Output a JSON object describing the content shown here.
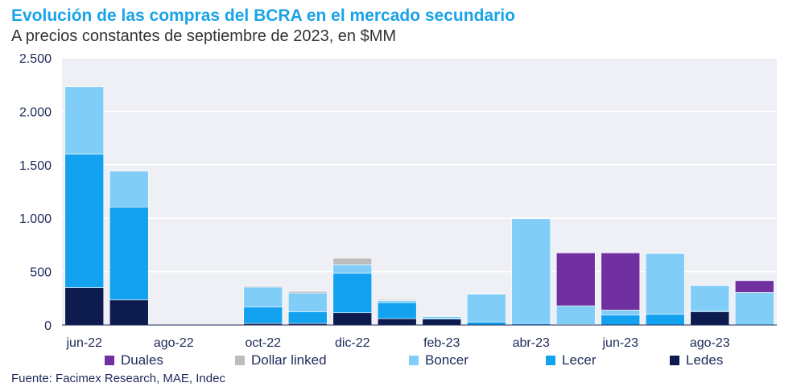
{
  "title": "Evolución de las compras del BCRA en el mercado secundario",
  "subtitle": "A precios constantes de septiembre de 2023, en $MM",
  "source": "Fuente: Facimex Research, MAE, Indec",
  "chart_data": {
    "type": "bar",
    "stacked": true,
    "categories": [
      "jun-22",
      "jul-22",
      "ago-22",
      "sep-22",
      "oct-22",
      "nov-22",
      "dic-22",
      "ene-23",
      "feb-23",
      "mar-23",
      "abr-23",
      "may-23",
      "jun-23",
      "jul-23",
      "ago-23",
      "sep-23"
    ],
    "x_tick_labels": [
      "jun-22",
      "ago-22",
      "oct-22",
      "dic-22",
      "feb-23",
      "abr-23",
      "jun-23",
      "ago-23"
    ],
    "y_tick_labels": [
      "0",
      "500",
      "1.000",
      "1.500",
      "2.000",
      "2.500"
    ],
    "y_ticks": [
      0,
      500,
      1000,
      1500,
      2000,
      2500
    ],
    "ylim": [
      0,
      2500
    ],
    "grid": true,
    "legend_position": "bottom",
    "series": [
      {
        "name": "Ledes",
        "color": "#0d1b4f",
        "values": [
          350,
          235,
          0,
          0,
          15,
          15,
          115,
          60,
          55,
          0,
          0,
          0,
          0,
          0,
          125,
          0
        ]
      },
      {
        "name": "Lecer",
        "color": "#12a2ef",
        "values": [
          1250,
          870,
          0,
          0,
          155,
          110,
          370,
          150,
          10,
          30,
          15,
          5,
          95,
          100,
          10,
          0
        ]
      },
      {
        "name": "Boncer",
        "color": "#80cdf8",
        "values": [
          630,
          335,
          0,
          0,
          185,
          175,
          80,
          20,
          15,
          260,
          980,
          175,
          45,
          570,
          235,
          305
        ]
      },
      {
        "name": "Dollar linked",
        "color": "#bdbdbd",
        "values": [
          0,
          0,
          0,
          0,
          10,
          15,
          60,
          10,
          5,
          5,
          0,
          0,
          0,
          5,
          5,
          0
        ]
      },
      {
        "name": "Duales",
        "color": "#7030a0",
        "values": [
          0,
          0,
          0,
          0,
          0,
          0,
          0,
          0,
          0,
          0,
          0,
          495,
          535,
          0,
          0,
          110
        ]
      }
    ],
    "legend_order": [
      "Duales",
      "Dollar linked",
      "Boncer",
      "Lecer",
      "Ledes"
    ]
  }
}
